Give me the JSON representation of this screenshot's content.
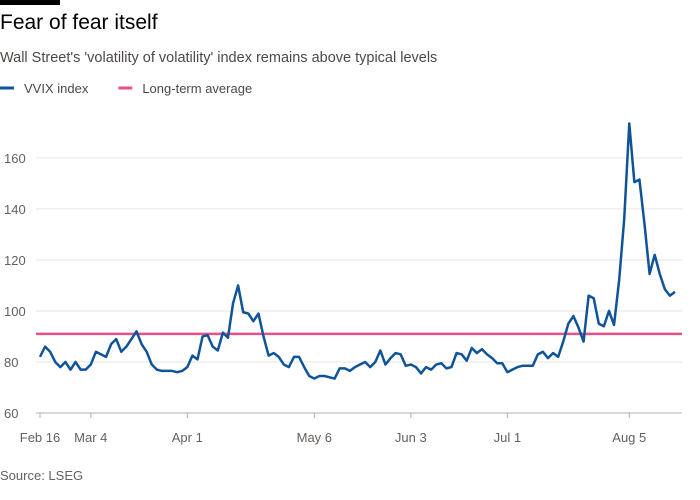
{
  "chart_data": {
    "type": "line",
    "title": "Fear of fear itself",
    "subtitle": "Wall Street's 'volatility of volatility' index remains above typical levels",
    "source": "Source: LSEG",
    "categories": [
      "Feb 16",
      null,
      null,
      null,
      null,
      null,
      null,
      null,
      null,
      null,
      "Mar 4",
      null,
      null,
      null,
      null,
      null,
      null,
      null,
      null,
      null,
      null,
      null,
      null,
      null,
      null,
      null,
      null,
      null,
      null,
      "Apr 1",
      null,
      null,
      null,
      null,
      null,
      null,
      null,
      null,
      null,
      null,
      null,
      null,
      null,
      null,
      null,
      null,
      null,
      null,
      null,
      null,
      null,
      null,
      null,
      null,
      "May 6",
      null,
      null,
      null,
      null,
      null,
      null,
      null,
      null,
      null,
      null,
      null,
      null,
      null,
      null,
      null,
      null,
      null,
      null,
      "Jun 3",
      null,
      null,
      null,
      null,
      null,
      null,
      null,
      null,
      null,
      null,
      null,
      null,
      null,
      null,
      null,
      null,
      null,
      null,
      "Jul 1",
      null,
      null,
      null,
      null,
      null,
      null,
      null,
      null,
      null,
      null,
      null,
      null,
      null,
      null,
      null,
      null,
      null,
      null,
      null,
      null,
      null,
      null,
      null,
      "Aug 5",
      null,
      null,
      null,
      null,
      null,
      null,
      null,
      null,
      null
    ],
    "series": [
      {
        "name": "VVIX index",
        "color": "#0f5499",
        "values": [
          82,
          86,
          84,
          80,
          78,
          80,
          77,
          80,
          77,
          77,
          79,
          84,
          83,
          82,
          87,
          89,
          84,
          86,
          89,
          92,
          87,
          84,
          79,
          77,
          76.5,
          76.5,
          76.5,
          76,
          76.5,
          78,
          82.5,
          81,
          90,
          90.5,
          86,
          84.5,
          91.5,
          89.5,
          103,
          110,
          99.5,
          99,
          96,
          99,
          90,
          82.5,
          83.5,
          82,
          79,
          78,
          82,
          82,
          78,
          74.5,
          73.5,
          74.5,
          74.5,
          74,
          73.5,
          77.5,
          77.5,
          76.5,
          78,
          79,
          80,
          78,
          80,
          84.5,
          79,
          81.5,
          83.5,
          83,
          78.5,
          79,
          78,
          75.5,
          78,
          77,
          79,
          79.5,
          77.5,
          78,
          83.5,
          83,
          80.5,
          85.5,
          83.5,
          85,
          83,
          81.5,
          79.5,
          79.5,
          76,
          77,
          78,
          78.5,
          78.5,
          78.5,
          83,
          84,
          81.5,
          83.5,
          82,
          88,
          95,
          98,
          93.5,
          88,
          106,
          105,
          95,
          94,
          100,
          94.5,
          112,
          136,
          173.5,
          150.5,
          151.5,
          134,
          114.5,
          122,
          114.5,
          108.5,
          106,
          107.5
        ]
      }
    ],
    "reference_lines": [
      {
        "name": "Long-term average",
        "color": "#e8528a",
        "value": 91
      }
    ],
    "ylim": [
      60,
      178
    ],
    "yticks": [
      60,
      80,
      100,
      120,
      140,
      160
    ],
    "grid": true
  }
}
